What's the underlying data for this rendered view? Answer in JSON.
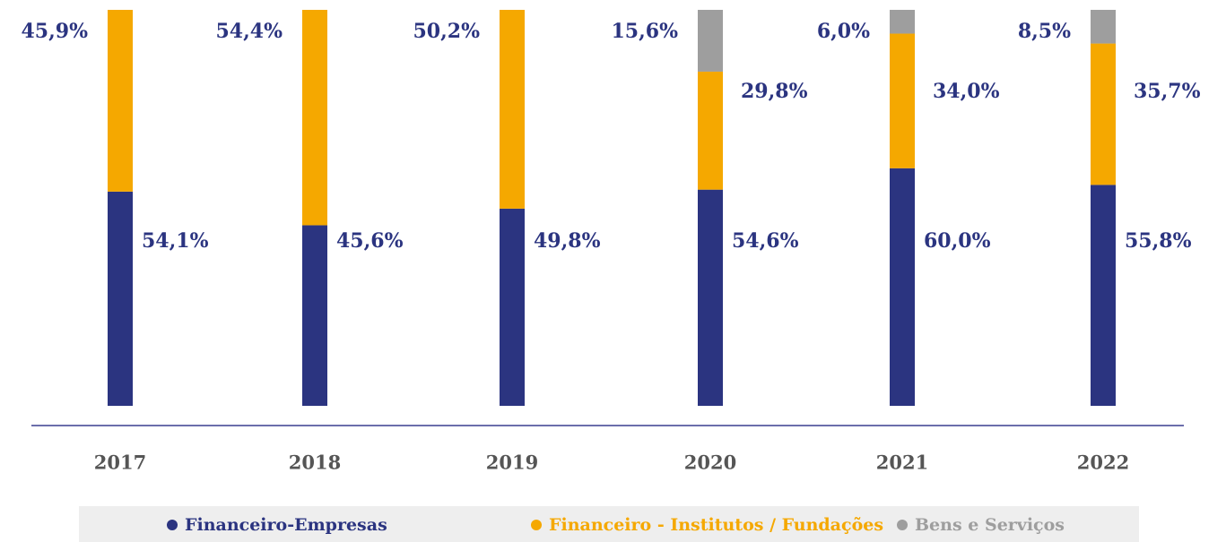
{
  "chart_data": {
    "type": "stacked_bar",
    "categories": [
      "2017",
      "2018",
      "2019",
      "2020",
      "2021",
      "2022"
    ],
    "ylim": [
      0,
      100
    ],
    "series": [
      {
        "name": "Financeiro-Empresas",
        "color": "#2b3480",
        "values": [
          54.1,
          45.6,
          49.8,
          54.6,
          60.0,
          55.8
        ],
        "value_labels": [
          "54,1%",
          "45,6%",
          "49,8%",
          "54,6%",
          "60,0%",
          "55,8%"
        ]
      },
      {
        "name": "Financeiro - Institutos / Fundações",
        "color": "#f5a800",
        "values": [
          45.9,
          54.4,
          50.2,
          29.8,
          34.0,
          35.7
        ],
        "value_labels": [
          "45,9%",
          "54,4%",
          "50,2%",
          "29,8%",
          "34,0%",
          "35,7%"
        ]
      },
      {
        "name": "Bens e Serviços",
        "color": "#9e9e9e",
        "values": [
          null,
          null,
          null,
          15.6,
          6.0,
          8.5
        ],
        "value_labels": [
          null,
          null,
          null,
          "15,6%",
          "6,0%",
          "8,5%"
        ]
      }
    ]
  }
}
